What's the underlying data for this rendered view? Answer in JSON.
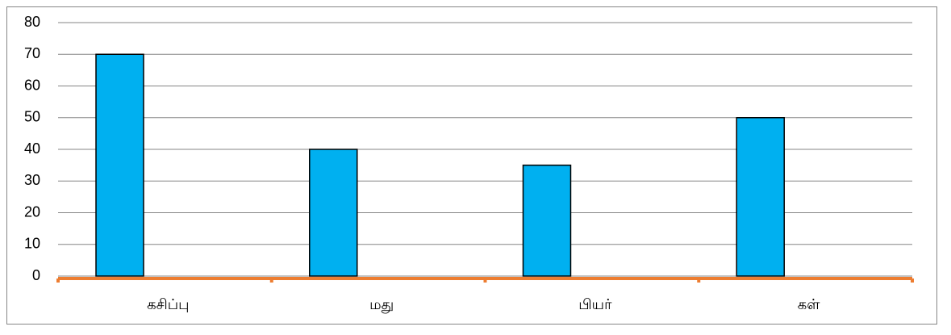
{
  "chart_data": {
    "type": "bar",
    "categories": [
      "கசிப்பு",
      "மது",
      "பியர்",
      "கள்"
    ],
    "values": [
      70,
      40,
      35,
      50
    ],
    "color": "#00b0f0",
    "axis_color": "#ed7d31",
    "ylim": [
      0,
      80
    ],
    "yticks": [
      0,
      10,
      20,
      30,
      40,
      50,
      60,
      70,
      80
    ],
    "grid": true
  }
}
